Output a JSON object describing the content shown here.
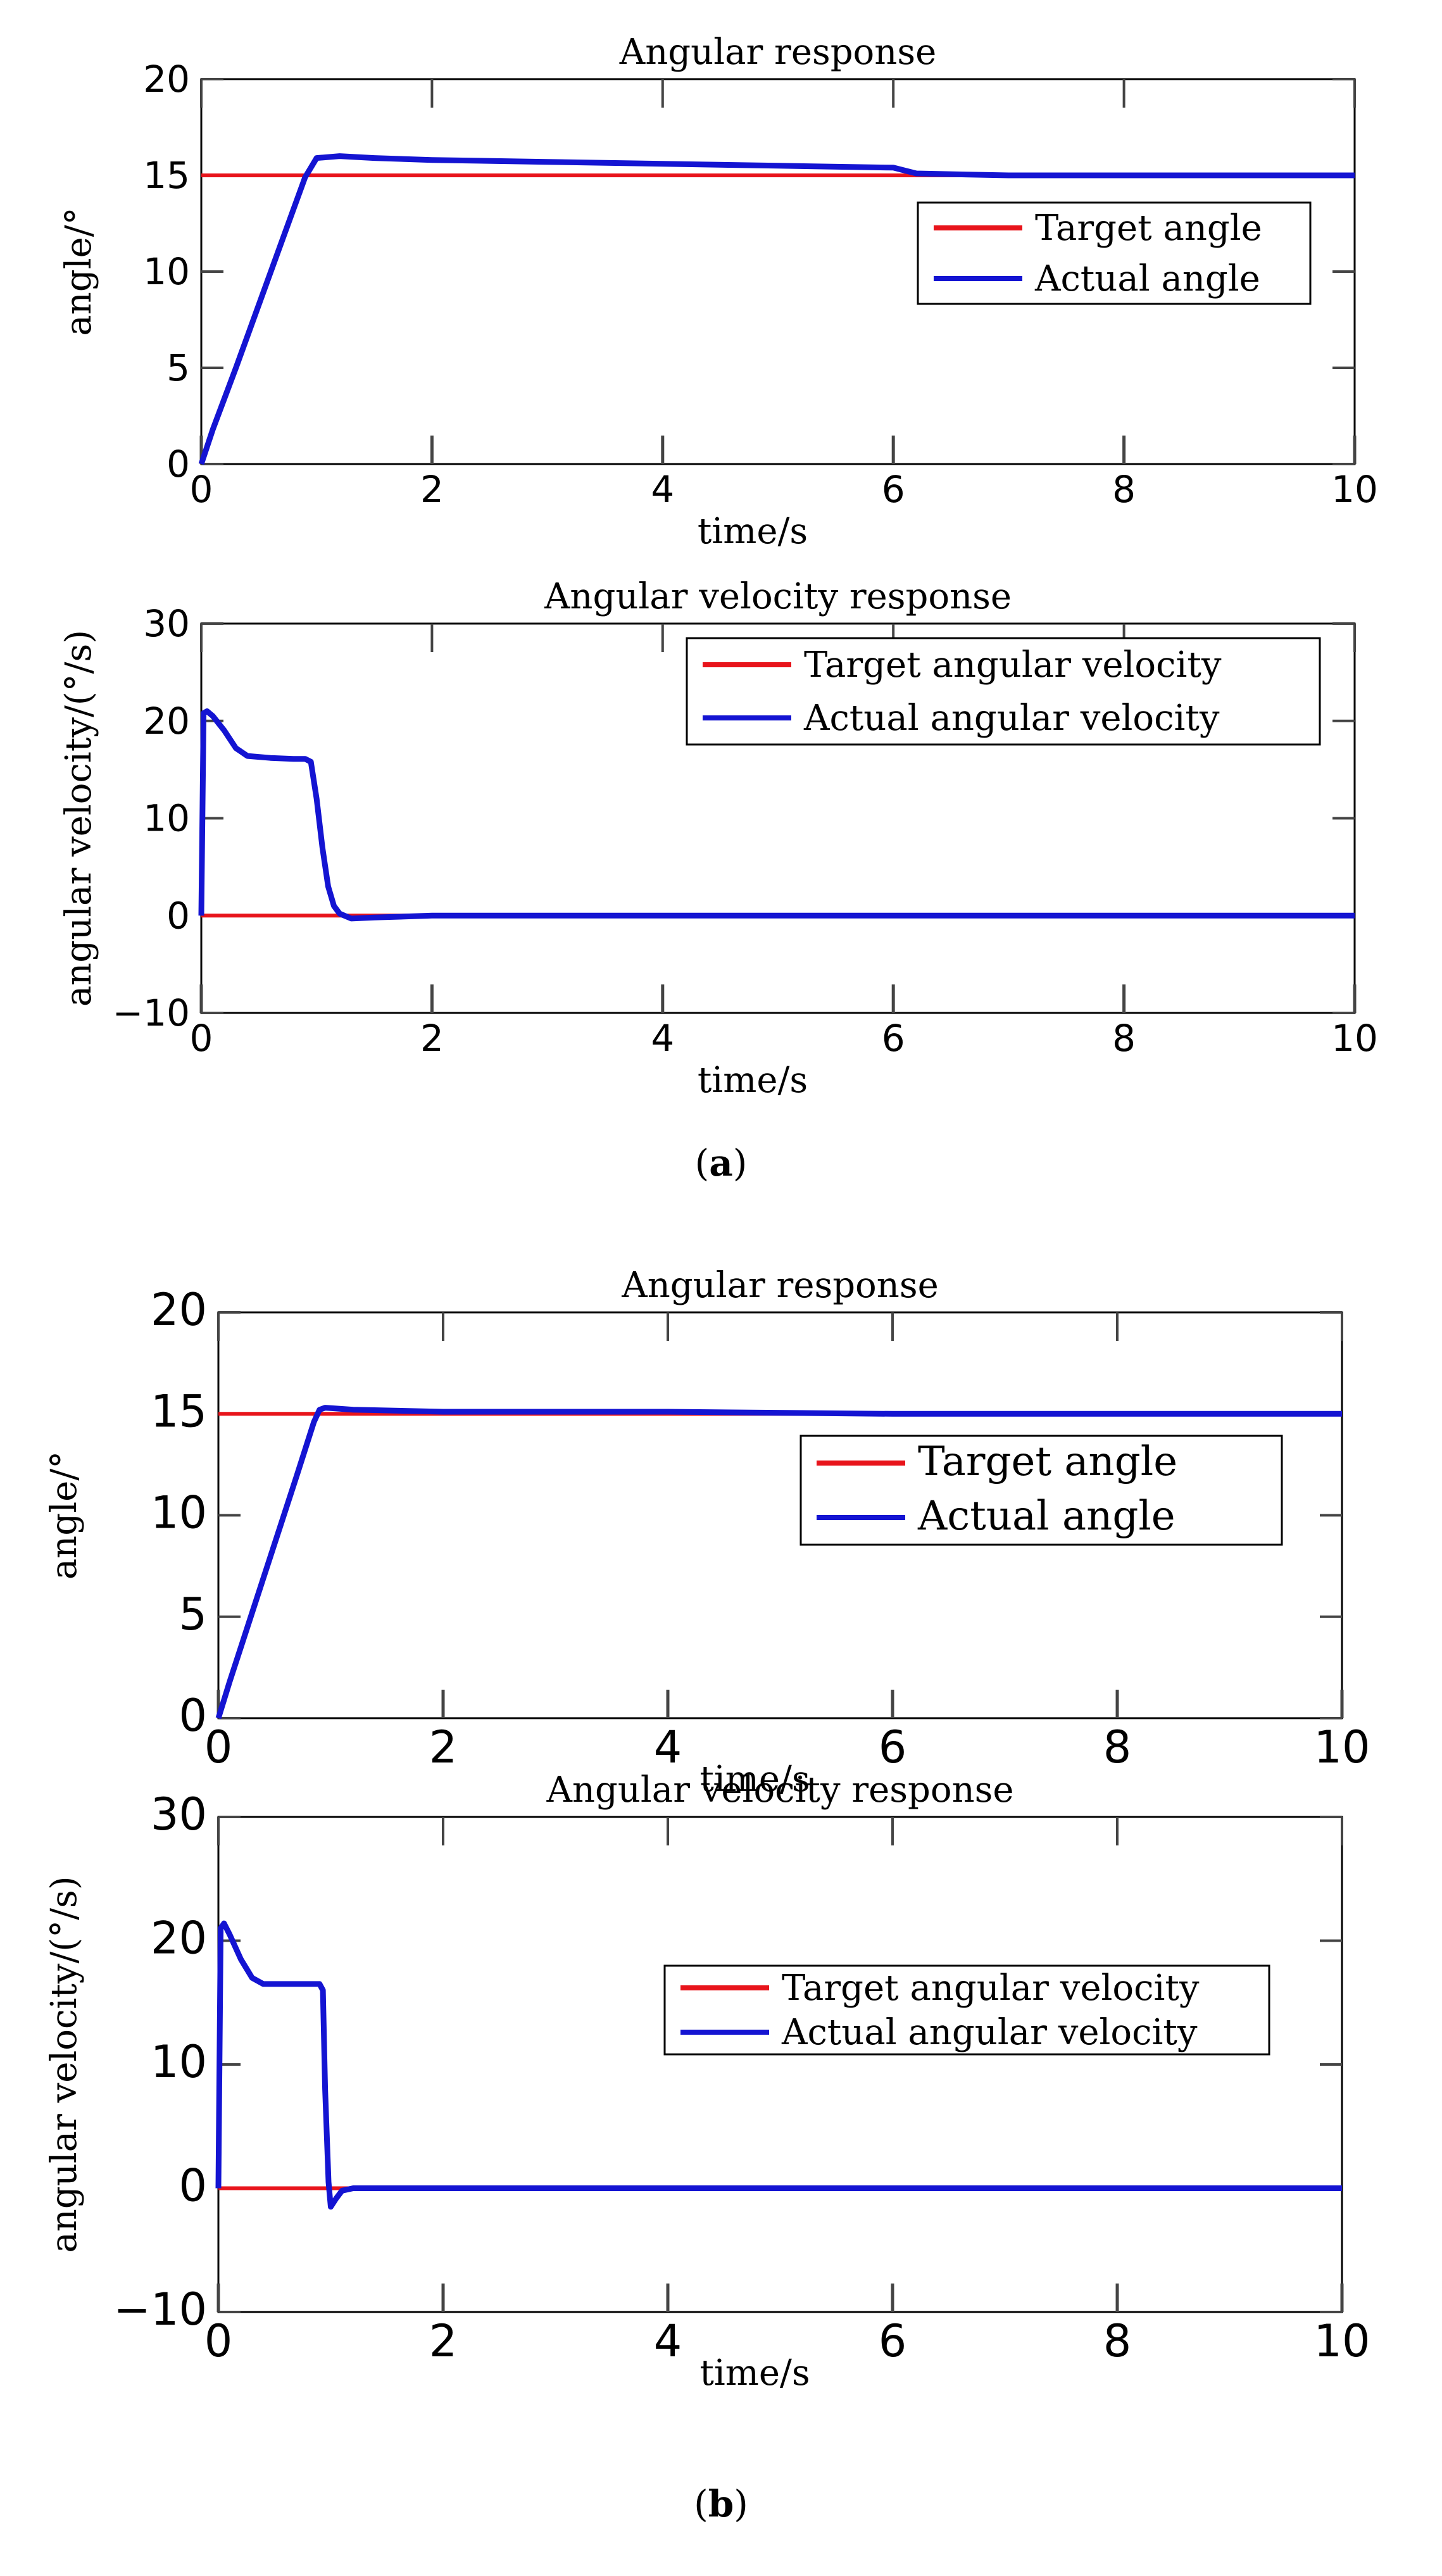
{
  "panels": [
    {
      "label_open": "(",
      "label_letter": "a",
      "label_close": ")"
    },
    {
      "label_open": "(",
      "label_letter": "b",
      "label_close": ")"
    }
  ],
  "colors": {
    "target": "#e8141b",
    "actual": "#1414d2",
    "axis": "#000000"
  },
  "chart_data": [
    {
      "type": "line",
      "title": "Angular response",
      "xlabel": "time/s",
      "ylabel": "angle/°",
      "xlim": [
        0,
        10
      ],
      "ylim": [
        0,
        20
      ],
      "xticks": [
        0,
        2,
        4,
        6,
        8,
        10
      ],
      "yticks": [
        0,
        5,
        10,
        15,
        20
      ],
      "legend_position": "right",
      "series": [
        {
          "name": "Target angle",
          "x": [
            0,
            10
          ],
          "y": [
            15,
            15
          ]
        },
        {
          "name": "Actual angle",
          "x": [
            0,
            0.1,
            0.3,
            0.5,
            0.7,
            0.9,
            1.0,
            1.2,
            1.5,
            2,
            3,
            4,
            5,
            6,
            6.2,
            7,
            8,
            9,
            10
          ],
          "y": [
            0,
            1.8,
            5.0,
            8.3,
            11.6,
            14.9,
            15.9,
            16.0,
            15.9,
            15.8,
            15.7,
            15.6,
            15.5,
            15.4,
            15.1,
            15.0,
            15.0,
            15.0,
            15.0
          ]
        }
      ]
    },
    {
      "type": "line",
      "title": "Angular velocity response",
      "xlabel": "time/s",
      "ylabel": "angular velocity/(°/s)",
      "xlim": [
        0,
        10
      ],
      "ylim": [
        -10,
        30
      ],
      "xticks": [
        0,
        2,
        4,
        6,
        8,
        10
      ],
      "yticks": [
        -10,
        0,
        10,
        20,
        30
      ],
      "legend_position": "top-right",
      "series": [
        {
          "name": "Target angular velocity",
          "x": [
            0,
            10
          ],
          "y": [
            0,
            0
          ]
        },
        {
          "name": "Actual angular velocity",
          "x": [
            0,
            0.02,
            0.05,
            0.1,
            0.2,
            0.3,
            0.4,
            0.6,
            0.8,
            0.9,
            0.95,
            1.0,
            1.05,
            1.1,
            1.15,
            1.2,
            1.3,
            1.5,
            2,
            4,
            6,
            8,
            10
          ],
          "y": [
            0,
            20.8,
            21.0,
            20.5,
            19.0,
            17.2,
            16.4,
            16.2,
            16.1,
            16.1,
            15.8,
            12.0,
            7.0,
            3.0,
            1.0,
            0.2,
            -0.3,
            -0.2,
            0,
            0,
            0,
            0,
            0
          ]
        }
      ]
    },
    {
      "type": "line",
      "title": "Angular response",
      "xlabel": "time/s",
      "ylabel": "angle/°",
      "xlim": [
        0,
        10
      ],
      "ylim": [
        0,
        20
      ],
      "xticks": [
        0,
        2,
        4,
        6,
        8,
        10
      ],
      "yticks": [
        0,
        5,
        10,
        15,
        20
      ],
      "legend_position": "right",
      "series": [
        {
          "name": "Target angle",
          "x": [
            0,
            10
          ],
          "y": [
            15,
            15
          ]
        },
        {
          "name": "Actual angle",
          "x": [
            0,
            0.1,
            0.3,
            0.5,
            0.7,
            0.85,
            0.9,
            0.95,
            1.2,
            2,
            4,
            6,
            8,
            10
          ],
          "y": [
            0,
            1.8,
            5.2,
            8.6,
            12.0,
            14.6,
            15.2,
            15.3,
            15.2,
            15.1,
            15.1,
            15.0,
            15.0,
            15.0
          ]
        }
      ]
    },
    {
      "type": "line",
      "title": "Angular velocity response",
      "xlabel": "time/s",
      "ylabel": "angular velocity/(°/s)",
      "xlim": [
        0,
        10
      ],
      "ylim": [
        -10,
        30
      ],
      "xticks": [
        0,
        2,
        4,
        6,
        8,
        10
      ],
      "yticks": [
        -10,
        0,
        10,
        20,
        30
      ],
      "legend_position": "top-right",
      "series": [
        {
          "name": "Target angular velocity",
          "x": [
            0,
            10
          ],
          "y": [
            0,
            0
          ]
        },
        {
          "name": "Actual angular velocity",
          "x": [
            0,
            0.02,
            0.05,
            0.1,
            0.2,
            0.3,
            0.4,
            0.6,
            0.8,
            0.9,
            0.93,
            0.95,
            0.98,
            1.0,
            1.05,
            1.1,
            1.2,
            1.5,
            2,
            4,
            6,
            8,
            10
          ],
          "y": [
            0,
            21.0,
            21.4,
            20.5,
            18.5,
            17.0,
            16.5,
            16.5,
            16.5,
            16.5,
            16.0,
            8.0,
            0.5,
            -1.5,
            -0.8,
            -0.2,
            0,
            0,
            0,
            0,
            0,
            0,
            0
          ]
        }
      ]
    }
  ]
}
